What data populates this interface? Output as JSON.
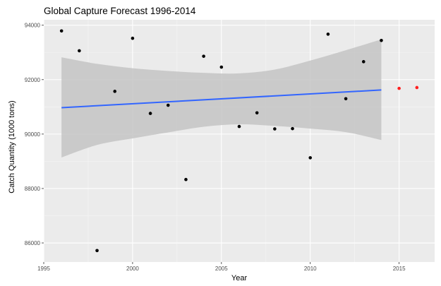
{
  "chart_data": {
    "type": "scatter",
    "title": "Global Capture Forecast 1996-2014",
    "xlabel": "Year",
    "ylabel": "Catch Quantity (1000 tons)",
    "xlim": [
      1995,
      2017
    ],
    "ylim": [
      85300,
      94200
    ],
    "x_ticks": [
      1995,
      2000,
      2005,
      2010,
      2015
    ],
    "y_ticks": [
      86000,
      88000,
      90000,
      92000,
      94000
    ],
    "x_tick_labels": [
      "1995",
      "2000",
      "2005",
      "2010",
      "2015"
    ],
    "y_tick_labels": [
      "86000",
      "88000",
      "90000",
      "92000",
      "94000"
    ],
    "grid": true,
    "background": "#ebebeb",
    "series": [
      {
        "color": "#000000",
        "points": [
          {
            "x": 1996,
            "y": 93790
          },
          {
            "x": 1997,
            "y": 93060
          },
          {
            "x": 1998,
            "y": 85720
          },
          {
            "x": 1999,
            "y": 91570
          },
          {
            "x": 2000,
            "y": 93520
          },
          {
            "x": 2001,
            "y": 90760
          },
          {
            "x": 2002,
            "y": 91060
          },
          {
            "x": 2003,
            "y": 88330
          },
          {
            "x": 2004,
            "y": 92860
          },
          {
            "x": 2005,
            "y": 92460
          },
          {
            "x": 2006,
            "y": 90280
          },
          {
            "x": 2007,
            "y": 90780
          },
          {
            "x": 2008,
            "y": 90190
          },
          {
            "x": 2009,
            "y": 90200
          },
          {
            "x": 2010,
            "y": 89130
          },
          {
            "x": 2011,
            "y": 93670
          },
          {
            "x": 2012,
            "y": 91300
          },
          {
            "x": 2013,
            "y": 92660
          },
          {
            "x": 2014,
            "y": 93440
          }
        ]
      },
      {
        "color": "#ff2020",
        "points": [
          {
            "x": 2015,
            "y": 91680
          },
          {
            "x": 2016,
            "y": 91710
          }
        ]
      }
    ],
    "trend_line": {
      "color": "#3366ff",
      "start": {
        "x": 1996,
        "y": 90970
      },
      "end": {
        "x": 2014,
        "y": 91620
      }
    },
    "confidence_band": {
      "color": "#c4c4c4",
      "x": [
        1996,
        1998,
        2000,
        2002,
        2004,
        2006,
        2008,
        2010,
        2012,
        2014
      ],
      "upper": [
        92820,
        92580,
        92420,
        92320,
        92250,
        92230,
        92370,
        92700,
        93080,
        93480
      ],
      "lower": [
        89140,
        89600,
        89840,
        90060,
        90270,
        90360,
        90300,
        90200,
        90070,
        89780
      ]
    }
  }
}
